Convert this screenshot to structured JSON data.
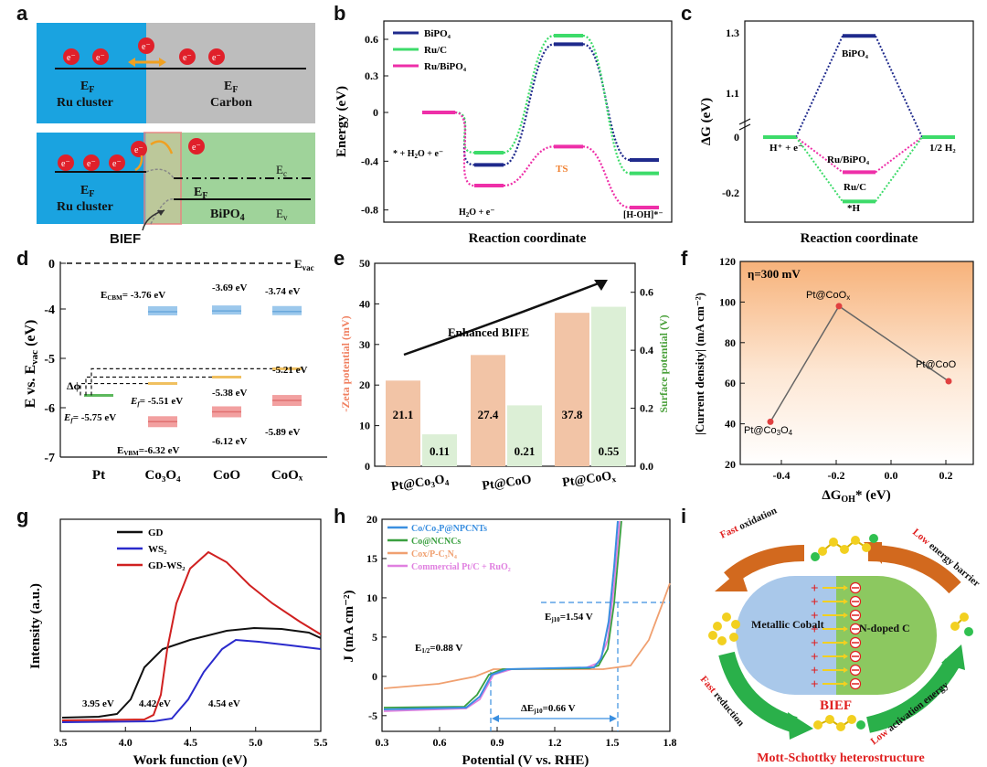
{
  "labels": {
    "a": "a",
    "b": "b",
    "c": "c",
    "d": "d",
    "e": "e",
    "f": "f",
    "g": "g",
    "h": "h",
    "i": "i"
  },
  "panel_a": {
    "electron": "e⁻",
    "ef": "E",
    "ef_sub": "F",
    "ru_cluster": "Ru cluster",
    "carbon": "Carbon",
    "ec": "E",
    "ec_sub": "c",
    "ev": "E",
    "ev_sub": "v",
    "bipo4": "BiPO",
    "bipo4_sub": "4",
    "bief": "BIEF",
    "colors": {
      "ru": "#1aa3e0",
      "carbon": "#bdbdbd",
      "bipo4": "#9fd39a",
      "electron": "#e0202a",
      "arrow": "#f0a020"
    }
  },
  "chart_b": {
    "type": "line",
    "ylabel": "Energy (eV)",
    "xlabel": "Reaction coordinate",
    "ylim": [
      -0.9,
      0.75
    ],
    "yticks": [
      "0.6",
      "0.3",
      "0",
      "-0.4",
      "-0.8"
    ],
    "ytick_values": [
      0.6,
      0.3,
      0,
      -0.4,
      -0.8
    ],
    "states": [
      "* + H₂O + e⁻",
      "H₂O + e⁻",
      "TS",
      "[H-OH]*⁻"
    ],
    "series": [
      {
        "name": "BiPO₄",
        "color": "#1f2a8c",
        "values": [
          0,
          -0.43,
          0.56,
          -0.39
        ]
      },
      {
        "name": "Ru/C",
        "color": "#3ddb6a",
        "values": [
          0,
          -0.33,
          0.63,
          -0.5
        ]
      },
      {
        "name": "Ru/BiPO₄",
        "color": "#ee2fa8",
        "values": [
          0,
          -0.6,
          -0.28,
          -0.78
        ]
      }
    ],
    "legend": [
      "BiPO₄",
      "Ru/C",
      "Ru/BiPO₄"
    ],
    "labels": {
      "start": "* + H",
      "start_sub": "2",
      "start_rest": "O + e⁻",
      "mid": "H",
      "mid_sub": "2",
      "mid_rest": "O + e⁻",
      "ts": "TS",
      "end": "[H-OH]*⁻"
    }
  },
  "chart_c": {
    "type": "line",
    "ylabel": "ΔG (eV)",
    "xlabel": "Reaction coordinate",
    "yticks": [
      "1.3",
      "1.1",
      "0",
      "-0.2"
    ],
    "series": [
      {
        "name": "BiPO₄",
        "color": "#1f2a8c",
        "values": [
          0,
          1.29,
          0
        ]
      },
      {
        "name": "Ru/BiPO₄",
        "color": "#ee2fa8",
        "values": [
          0,
          -0.12,
          0
        ]
      },
      {
        "name": "Ru/C",
        "color": "#3ddb6a",
        "values": [
          0,
          -0.22,
          0
        ]
      }
    ],
    "labels": {
      "bipo4": "BiPO₄",
      "rubipo4": "Ru/BiPO₄",
      "ruc": "Ru/C",
      "h": "*H",
      "start": "H⁺ + e⁻",
      "end": "1/2 H₂"
    }
  },
  "chart_d": {
    "type": "bar",
    "ylabel": "E vs. E",
    "ylabel_sub": "vac",
    "ylabel_unit": " (eV)",
    "ylim": [
      -7,
      0
    ],
    "yticks": [
      "0",
      "-4",
      "-5",
      "-6",
      "-7"
    ],
    "categories": [
      "Pt",
      "Co₃O₄",
      "CoO",
      "CoOₓ"
    ],
    "evac": "E",
    "evac_sub": "vac",
    "cbm": [
      null,
      -3.76,
      -3.69,
      -3.74
    ],
    "vbm": [
      null,
      -6.32,
      -6.12,
      -5.89
    ],
    "fermi": [
      -5.75,
      -5.51,
      -5.38,
      -5.21
    ],
    "text": {
      "ecbm": "E",
      "ecbm_sub": "CBM",
      "ecbm_val": "= -3.76 eV",
      "coo_cbm": "-3.69 eV",
      "coox_cbm": "-3.74 eV",
      "evbm": "E",
      "evbm_sub": "VBM",
      "evbm_val": "=-6.32 eV",
      "coo_vbm": "-6.12 eV",
      "coox_vbm": "-5.89 eV",
      "pt_ef": "E",
      "pt_ef_sub": "f",
      "pt_ef_val": "= -5.75 eV",
      "co3o4_ef": "E",
      "co3o4_ef_sub": "f",
      "co3o4_ef_val": "= -5.51 eV",
      "coo_ef": "-5.38 eV",
      "coox_ef": "-5.21 eV",
      "dphi": "Δϕ"
    },
    "colors": {
      "cbm": "#9cc8ec",
      "vbm": "#f2a0a0",
      "fermi": "#f0c060",
      "pt": "#5cb85c"
    }
  },
  "chart_e": {
    "type": "bar",
    "categories": [
      "Pt@Co₃O₄",
      "Pt@CoO",
      "Pt@CoOₓ"
    ],
    "series": [
      {
        "name": "-Zeta potential (mV)",
        "color": "#f2c4a6",
        "values": [
          21.1,
          27.4,
          37.8
        ]
      },
      {
        "name": "Surface potential (V)",
        "color": "#dcefd6",
        "values": [
          0.11,
          0.21,
          0.55
        ]
      }
    ],
    "value_labels": [
      "21.1",
      "0.11",
      "27.4",
      "0.21",
      "37.8",
      "0.55"
    ],
    "ylabel_left": "-Zeta potential (mV)",
    "ylabel_right": "Surface potential (V)",
    "ylim_left": [
      0,
      50
    ],
    "ylim_right": [
      0,
      0.7
    ],
    "yticks_left": [
      "0",
      "10",
      "20",
      "30",
      "40",
      "50"
    ],
    "yticks_right": [
      "0.0",
      "0.2",
      "0.4",
      "0.6"
    ],
    "annotation": "Enhanced BIFE",
    "xtick_labels": {
      "c1": "Pt@Co",
      "c1_sub": "3",
      "c1_mid": "O",
      "c1_sub2": "4",
      "c2": "Pt@CoO",
      "c3": "Pt@CoO",
      "c3_sub": "x"
    }
  },
  "chart_f": {
    "type": "scatter",
    "title": "η=300 mV",
    "ylabel": "|Current density|  (mA cm⁻²)",
    "xlabel": "ΔG",
    "xlabel_sub": "OH",
    "xlabel_rest": "* (eV)",
    "xlim": [
      -0.55,
      0.3
    ],
    "ylim": [
      20,
      120
    ],
    "xticks": [
      "-0.4",
      "-0.2",
      "0.0",
      "0.2"
    ],
    "yticks": [
      "20",
      "40",
      "60",
      "80",
      "100",
      "120"
    ],
    "points": [
      {
        "name": "Pt@Co₃O₄",
        "x": -0.44,
        "y": 41
      },
      {
        "name": "Pt@CoOₓ",
        "x": -0.19,
        "y": 98
      },
      {
        "name": "Pt@CoO",
        "x": 0.21,
        "y": 61
      }
    ],
    "point_labels": {
      "p1": "Pt@Co",
      "p1_sub": "3",
      "p1_mid": "O",
      "p1_sub2": "4",
      "p2": "Pt@CoO",
      "p2_sub": "x",
      "p3": "Pt@CoO"
    }
  },
  "chart_g": {
    "type": "line",
    "ylabel": "Intensity (a.u.)",
    "xlabel": "Work function (eV)",
    "xlim": [
      3.5,
      5.5
    ],
    "xticks": [
      "3.5",
      "4.0",
      "4.5",
      "5.0",
      "5.5"
    ],
    "legend": [
      "GD",
      "WS₂",
      "GD-WS₂"
    ],
    "series": [
      {
        "name": "GD",
        "color": "#111111"
      },
      {
        "name": "WS₂",
        "color": "#2a2acc"
      },
      {
        "name": "GD-WS₂",
        "color": "#d02020"
      }
    ],
    "annotations": [
      "3.95 eV",
      "4.42 eV",
      "4.54 eV"
    ]
  },
  "chart_h": {
    "type": "line",
    "ylabel": "J (mA cm⁻²)",
    "xlabel": "Potential (V vs. RHE)",
    "xlim": [
      0.3,
      1.8
    ],
    "ylim": [
      -7,
      20
    ],
    "xticks": [
      "0.3",
      "0.6",
      "0.9",
      "1.2",
      "1.5",
      "1.8"
    ],
    "yticks": [
      "-5",
      "0",
      "5",
      "10",
      "15",
      "20"
    ],
    "legend": [
      "Co/Co₂P@NPCNTs",
      "Co@NCNCs",
      "Cox/P-C₃N₄",
      "Commercial Pt/C + RuO₂"
    ],
    "colors": [
      "#3a8fe0",
      "#3aa040",
      "#f0a070",
      "#e080e0"
    ],
    "annotations": {
      "e12": "E",
      "e12_sub": "1/2",
      "e12_val": "=0.88 V",
      "ej": "E",
      "ej_sub": "j10",
      "ej_val": "=1.54 V",
      "de": "ΔE",
      "de_sub": "j10",
      "de_val": "=0.66 V"
    }
  },
  "panel_i": {
    "left": "Metallic Cobalt",
    "right": "N-doped C",
    "bief": "BIEF",
    "title": "Mott-Schottky heterostructure",
    "top_left": [
      "Fast",
      " oxidation"
    ],
    "top_right": [
      "Low",
      " energy barrier"
    ],
    "bottom_left": [
      "Fast",
      " reduction"
    ],
    "bottom_right": [
      "Low",
      " activation energy"
    ],
    "colors": {
      "left": "#a9c8ea",
      "right": "#8cc860",
      "arrow_top": "#d2691e",
      "arrow_bottom": "#2ab04a",
      "accent": "#e02020"
    }
  }
}
